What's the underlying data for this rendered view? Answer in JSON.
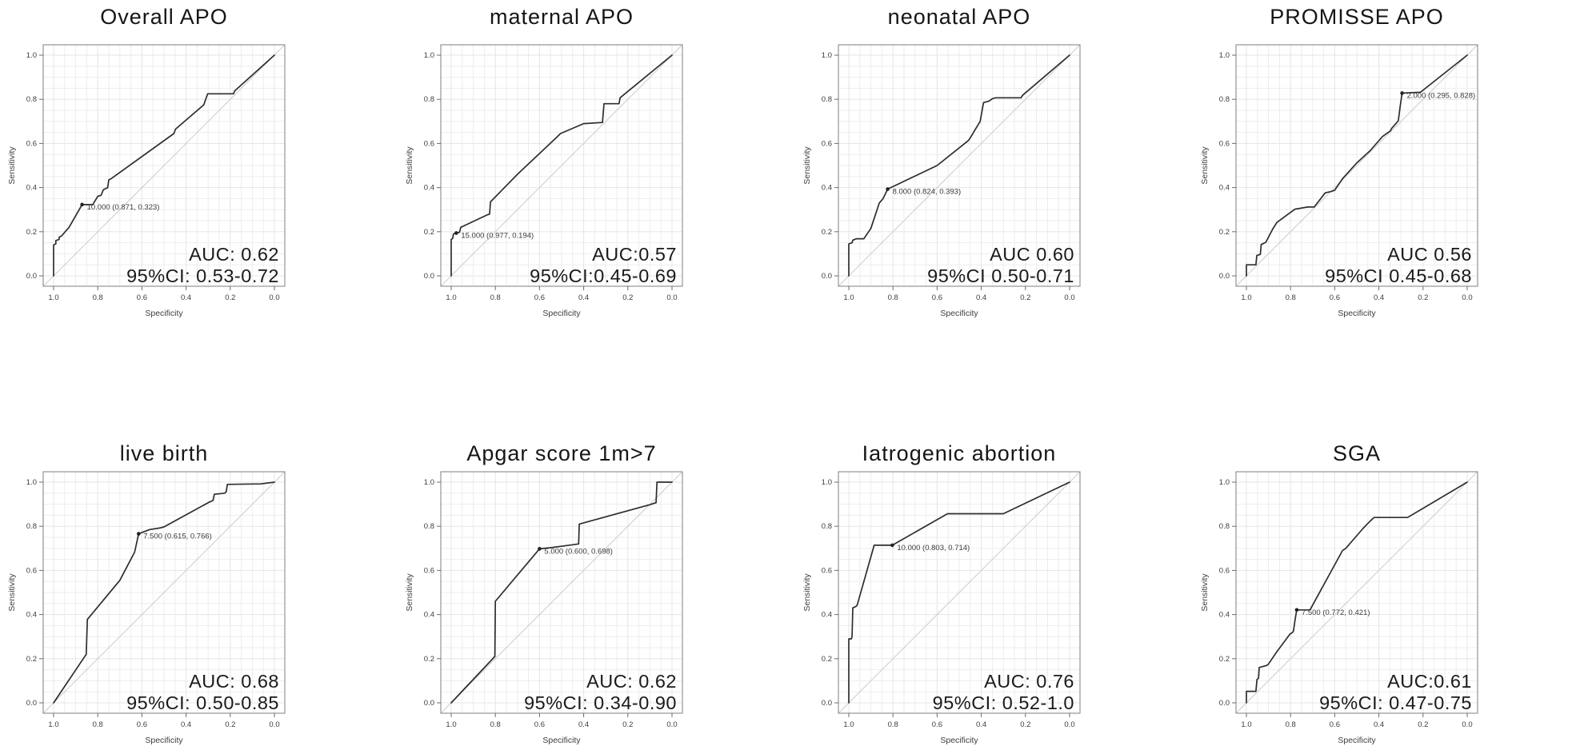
{
  "figure": {
    "layout": "2x4 grid of ROC curve panels",
    "background": "#ffffff"
  },
  "colors": {
    "curve": "#2e2e2e",
    "panel_border": "#8a8a8a",
    "grid_minor": "#ededed",
    "grid_major": "#e5e5e5",
    "diagonal_reference": "#cfcfcf",
    "tick": "#6b6b6b",
    "tick_label": "#3d3d3d",
    "axis_label": "#3d3d3d",
    "annotation_text": "#3a3a3a",
    "auc_text": "#1a1a1a",
    "title_text": "#161616"
  },
  "axes": {
    "xlabel": "Specificity",
    "ylabel": "Sensitivity",
    "x_tick_labels": [
      "1.0",
      "0.8",
      "0.6",
      "0.4",
      "0.2",
      "0.0"
    ],
    "y_tick_labels": [
      "0.0",
      "0.2",
      "0.4",
      "0.6",
      "0.8",
      "1.0"
    ],
    "x_direction": "reversed (1.0 left to 0.0 right)",
    "grid": "on",
    "diagonal_reference_line": true
  },
  "chart_data": [
    {
      "type": "line",
      "title": "Overall APO",
      "xlabel": "Specificity",
      "ylabel": "Sensitivity",
      "xlim": [
        1.0,
        0.0
      ],
      "ylim": [
        0.0,
        1.0
      ],
      "auc_label": "AUC: 0.62",
      "ci_label": "95%CI: 0.53-0.72",
      "threshold_annotation": {
        "label": "10.000 (0.871, 0.323)",
        "specificity": 0.871,
        "sensitivity": 0.323
      },
      "roc_points": [
        [
          1.0,
          0.0
        ],
        [
          1.0,
          0.14
        ],
        [
          0.99,
          0.145
        ],
        [
          0.99,
          0.16
        ],
        [
          0.975,
          0.165
        ],
        [
          0.975,
          0.175
        ],
        [
          0.965,
          0.18
        ],
        [
          0.93,
          0.22
        ],
        [
          0.871,
          0.323
        ],
        [
          0.823,
          0.323
        ],
        [
          0.8,
          0.36
        ],
        [
          0.785,
          0.365
        ],
        [
          0.775,
          0.39
        ],
        [
          0.755,
          0.4
        ],
        [
          0.75,
          0.435
        ],
        [
          0.74,
          0.44
        ],
        [
          0.455,
          0.645
        ],
        [
          0.448,
          0.665
        ],
        [
          0.32,
          0.775
        ],
        [
          0.302,
          0.825
        ],
        [
          0.185,
          0.825
        ],
        [
          0.18,
          0.838
        ],
        [
          0.0,
          1.0
        ]
      ]
    },
    {
      "type": "line",
      "title": "maternal APO",
      "xlabel": "Specificity",
      "ylabel": "Sensitivity",
      "xlim": [
        1.0,
        0.0
      ],
      "ylim": [
        0.0,
        1.0
      ],
      "auc_label": "AUC:0.57",
      "ci_label": "95%CI:0.45-0.69",
      "threshold_annotation": {
        "label": "15.000 (0.977, 0.194)",
        "specificity": 0.977,
        "sensitivity": 0.194
      },
      "roc_points": [
        [
          1.0,
          0.0
        ],
        [
          1.0,
          0.165
        ],
        [
          0.993,
          0.17
        ],
        [
          0.99,
          0.19
        ],
        [
          0.977,
          0.194
        ],
        [
          0.962,
          0.198
        ],
        [
          0.957,
          0.22
        ],
        [
          0.94,
          0.228
        ],
        [
          0.84,
          0.275
        ],
        [
          0.826,
          0.28
        ],
        [
          0.822,
          0.335
        ],
        [
          0.7,
          0.46
        ],
        [
          0.52,
          0.63
        ],
        [
          0.505,
          0.645
        ],
        [
          0.4,
          0.69
        ],
        [
          0.315,
          0.695
        ],
        [
          0.308,
          0.78
        ],
        [
          0.24,
          0.78
        ],
        [
          0.235,
          0.807
        ],
        [
          0.0,
          1.0
        ]
      ]
    },
    {
      "type": "line",
      "title": "neonatal APO",
      "xlabel": "Specificity",
      "ylabel": "Sensitivity",
      "xlim": [
        1.0,
        0.0
      ],
      "ylim": [
        0.0,
        1.0
      ],
      "auc_label": "AUC 0.60",
      "ci_label": "95%CI 0.50-0.71",
      "threshold_annotation": {
        "label": "8.000 (0.824, 0.393)",
        "specificity": 0.824,
        "sensitivity": 0.393
      },
      "roc_points": [
        [
          1.0,
          0.0
        ],
        [
          1.0,
          0.145
        ],
        [
          0.985,
          0.15
        ],
        [
          0.982,
          0.162
        ],
        [
          0.965,
          0.168
        ],
        [
          0.932,
          0.168
        ],
        [
          0.9,
          0.215
        ],
        [
          0.862,
          0.33
        ],
        [
          0.845,
          0.35
        ],
        [
          0.824,
          0.393
        ],
        [
          0.6,
          0.5
        ],
        [
          0.465,
          0.608
        ],
        [
          0.455,
          0.617
        ],
        [
          0.405,
          0.7
        ],
        [
          0.39,
          0.785
        ],
        [
          0.365,
          0.792
        ],
        [
          0.35,
          0.803
        ],
        [
          0.335,
          0.807
        ],
        [
          0.22,
          0.807
        ],
        [
          0.213,
          0.818
        ],
        [
          0.0,
          1.0
        ]
      ]
    },
    {
      "type": "line",
      "title": "PROMISSE APO",
      "xlabel": "Specificity",
      "ylabel": "Sensitivity",
      "xlim": [
        1.0,
        0.0
      ],
      "ylim": [
        0.0,
        1.0
      ],
      "auc_label": "AUC 0.56",
      "ci_label": "95%CI 0.45-0.68",
      "threshold_annotation": {
        "label": "2.000 (0.295, 0.828)",
        "specificity": 0.295,
        "sensitivity": 0.828
      },
      "roc_points": [
        [
          1.0,
          0.0
        ],
        [
          1.0,
          0.05
        ],
        [
          0.957,
          0.05
        ],
        [
          0.953,
          0.092
        ],
        [
          0.937,
          0.097
        ],
        [
          0.933,
          0.142
        ],
        [
          0.912,
          0.152
        ],
        [
          0.882,
          0.21
        ],
        [
          0.862,
          0.242
        ],
        [
          0.78,
          0.302
        ],
        [
          0.722,
          0.312
        ],
        [
          0.693,
          0.312
        ],
        [
          0.643,
          0.376
        ],
        [
          0.617,
          0.382
        ],
        [
          0.6,
          0.388
        ],
        [
          0.565,
          0.44
        ],
        [
          0.5,
          0.512
        ],
        [
          0.44,
          0.567
        ],
        [
          0.383,
          0.632
        ],
        [
          0.348,
          0.657
        ],
        [
          0.342,
          0.668
        ],
        [
          0.312,
          0.703
        ],
        [
          0.303,
          0.773
        ],
        [
          0.295,
          0.828
        ],
        [
          0.212,
          0.832
        ],
        [
          0.0,
          1.0
        ]
      ]
    },
    {
      "type": "line",
      "title": "live birth",
      "xlabel": "Specificity",
      "ylabel": "Sensitivity",
      "xlim": [
        1.0,
        0.0
      ],
      "ylim": [
        0.0,
        1.0
      ],
      "auc_label": "AUC: 0.68",
      "ci_label": "95%CI: 0.50-0.85",
      "threshold_annotation": {
        "label": "7.500 (0.615, 0.766)",
        "specificity": 0.615,
        "sensitivity": 0.766
      },
      "roc_points": [
        [
          1.0,
          0.0
        ],
        [
          0.852,
          0.22
        ],
        [
          0.847,
          0.378
        ],
        [
          0.7,
          0.555
        ],
        [
          0.633,
          0.683
        ],
        [
          0.615,
          0.766
        ],
        [
          0.565,
          0.785
        ],
        [
          0.52,
          0.792
        ],
        [
          0.5,
          0.797
        ],
        [
          0.3,
          0.907
        ],
        [
          0.278,
          0.917
        ],
        [
          0.272,
          0.945
        ],
        [
          0.225,
          0.95
        ],
        [
          0.218,
          0.957
        ],
        [
          0.213,
          0.99
        ],
        [
          0.062,
          0.992
        ],
        [
          0.0,
          1.0
        ]
      ]
    },
    {
      "type": "line",
      "title": "Apgar score 1m>7",
      "xlabel": "Specificity",
      "ylabel": "Sensitivity",
      "xlim": [
        1.0,
        0.0
      ],
      "ylim": [
        0.0,
        1.0
      ],
      "auc_label": "AUC: 0.62",
      "ci_label": "95%CI: 0.34-0.90",
      "threshold_annotation": {
        "label": "5.000 (0.600, 0.698)",
        "specificity": 0.6,
        "sensitivity": 0.698
      },
      "roc_points": [
        [
          1.0,
          0.0
        ],
        [
          0.802,
          0.21
        ],
        [
          0.8,
          0.46
        ],
        [
          0.6,
          0.698
        ],
        [
          0.55,
          0.703
        ],
        [
          0.46,
          0.715
        ],
        [
          0.423,
          0.72
        ],
        [
          0.42,
          0.81
        ],
        [
          0.1,
          0.898
        ],
        [
          0.072,
          0.907
        ],
        [
          0.068,
          1.0
        ],
        [
          0.0,
          1.0
        ]
      ]
    },
    {
      "type": "line",
      "title": "Iatrogenic abortion",
      "xlabel": "Specificity",
      "ylabel": "Sensitivity",
      "xlim": [
        1.0,
        0.0
      ],
      "ylim": [
        0.0,
        1.0
      ],
      "auc_label": "AUC: 0.76",
      "ci_label": "95%CI: 0.52-1.0",
      "threshold_annotation": {
        "label": "10.000 (0.803, 0.714)",
        "specificity": 0.803,
        "sensitivity": 0.714
      },
      "roc_points": [
        [
          1.0,
          0.0
        ],
        [
          1.0,
          0.29
        ],
        [
          0.988,
          0.29
        ],
        [
          0.985,
          0.303
        ],
        [
          0.982,
          0.43
        ],
        [
          0.967,
          0.437
        ],
        [
          0.962,
          0.443
        ],
        [
          0.885,
          0.714
        ],
        [
          0.803,
          0.714
        ],
        [
          0.553,
          0.857
        ],
        [
          0.3,
          0.857
        ],
        [
          0.0,
          1.0
        ]
      ]
    },
    {
      "type": "line",
      "title": "SGA",
      "xlabel": "Specificity",
      "ylabel": "Sensitivity",
      "xlim": [
        1.0,
        0.0
      ],
      "ylim": [
        0.0,
        1.0
      ],
      "auc_label": "AUC:0.61",
      "ci_label": "95%CI: 0.47-0.75",
      "threshold_annotation": {
        "label": "7.500 (0.772, 0.421)",
        "specificity": 0.772,
        "sensitivity": 0.421
      },
      "roc_points": [
        [
          1.0,
          0.0
        ],
        [
          1.0,
          0.052
        ],
        [
          0.957,
          0.052
        ],
        [
          0.952,
          0.105
        ],
        [
          0.945,
          0.112
        ],
        [
          0.942,
          0.16
        ],
        [
          0.912,
          0.168
        ],
        [
          0.902,
          0.173
        ],
        [
          0.862,
          0.232
        ],
        [
          0.802,
          0.312
        ],
        [
          0.792,
          0.318
        ],
        [
          0.787,
          0.325
        ],
        [
          0.78,
          0.372
        ],
        [
          0.772,
          0.421
        ],
        [
          0.712,
          0.421
        ],
        [
          0.565,
          0.69
        ],
        [
          0.55,
          0.7
        ],
        [
          0.472,
          0.79
        ],
        [
          0.443,
          0.82
        ],
        [
          0.422,
          0.84
        ],
        [
          0.27,
          0.84
        ],
        [
          0.0,
          1.0
        ]
      ]
    }
  ]
}
